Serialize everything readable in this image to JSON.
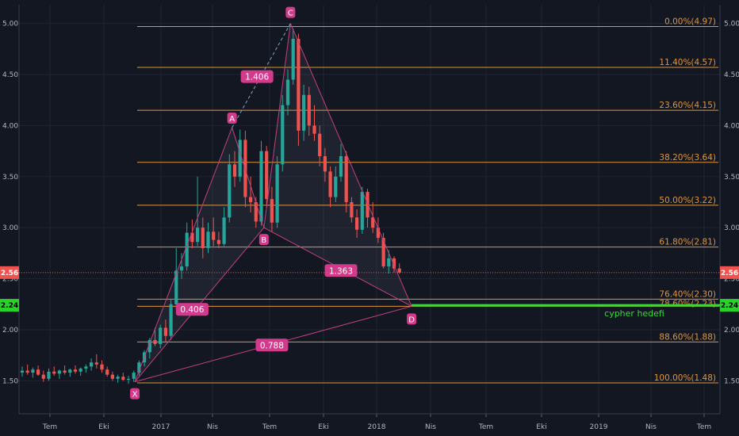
{
  "chart_data": {
    "type": "candlestick",
    "x_ticks": [
      "Tem",
      "Eki",
      "2017",
      "Nis",
      "Tem",
      "Eki",
      "2018",
      "Nis",
      "Tem",
      "Eki",
      "2019",
      "Nis",
      "Tem"
    ],
    "y_ticks": [
      "1.50",
      "2.00",
      "2.50",
      "3.00",
      "3.50",
      "4.00",
      "4.50",
      "5.00"
    ],
    "ylim": [
      1.27,
      5.09
    ],
    "grid": true,
    "current_price": {
      "value": 2.56,
      "label": "2.56",
      "color": "#ef5350"
    },
    "target_price": {
      "value": 2.24,
      "label": "2.24",
      "color": "#36d936",
      "text": "cypher hedefi"
    },
    "fib_levels": [
      {
        "value": 4.97,
        "label": "0.00%(4.97)"
      },
      {
        "value": 4.57,
        "label": "11.40%(4.57)"
      },
      {
        "value": 4.15,
        "label": "23.60%(4.15)"
      },
      {
        "value": 3.64,
        "label": "38.20%(3.64)"
      },
      {
        "value": 3.22,
        "label": "50.00%(3.22)"
      },
      {
        "value": 2.81,
        "label": "61.80%(2.81)"
      },
      {
        "value": 2.3,
        "label": "76.40%(2.30)"
      },
      {
        "value": 2.23,
        "label": "78.60%(2.23)"
      },
      {
        "value": 1.88,
        "label": "88.60%(1.88)"
      },
      {
        "value": 1.48,
        "label": "100.00%(1.48)"
      }
    ],
    "pattern_points": [
      {
        "name": "X",
        "t": 21.2,
        "value": 1.49
      },
      {
        "name": "A",
        "t": 39.5,
        "value": 3.98
      },
      {
        "name": "B",
        "t": 45.5,
        "value": 3.0
      },
      {
        "name": "C",
        "t": 50.5,
        "value": 5.0
      },
      {
        "name": "D",
        "t": 73.3,
        "value": 2.23
      }
    ],
    "ratios": [
      {
        "label": "1.406",
        "t": 44.2,
        "value": 4.48
      },
      {
        "label": "0.406",
        "t": 32.0,
        "value": 2.2
      },
      {
        "label": "1.363",
        "t": 60.0,
        "value": 2.58
      },
      {
        "label": "0.788",
        "t": 47.0,
        "value": 1.85
      }
    ],
    "candles": [
      [
        1.58,
        1.64,
        1.54,
        1.6
      ],
      [
        1.6,
        1.66,
        1.56,
        1.58
      ],
      [
        1.58,
        1.63,
        1.53,
        1.61
      ],
      [
        1.61,
        1.65,
        1.55,
        1.56
      ],
      [
        1.56,
        1.6,
        1.49,
        1.52
      ],
      [
        1.52,
        1.62,
        1.5,
        1.59
      ],
      [
        1.59,
        1.64,
        1.55,
        1.57
      ],
      [
        1.57,
        1.61,
        1.52,
        1.6
      ],
      [
        1.6,
        1.65,
        1.56,
        1.58
      ],
      [
        1.58,
        1.62,
        1.54,
        1.61
      ],
      [
        1.61,
        1.65,
        1.57,
        1.59
      ],
      [
        1.59,
        1.63,
        1.55,
        1.62
      ],
      [
        1.62,
        1.66,
        1.58,
        1.64
      ],
      [
        1.64,
        1.72,
        1.6,
        1.68
      ],
      [
        1.68,
        1.76,
        1.62,
        1.66
      ],
      [
        1.66,
        1.7,
        1.58,
        1.61
      ],
      [
        1.61,
        1.64,
        1.54,
        1.56
      ],
      [
        1.56,
        1.59,
        1.5,
        1.52
      ],
      [
        1.52,
        1.56,
        1.48,
        1.54
      ],
      [
        1.54,
        1.58,
        1.5,
        1.51
      ],
      [
        1.51,
        1.55,
        1.47,
        1.52
      ],
      [
        1.52,
        1.6,
        1.49,
        1.58
      ],
      [
        1.58,
        1.7,
        1.55,
        1.68
      ],
      [
        1.68,
        1.8,
        1.64,
        1.78
      ],
      [
        1.78,
        1.92,
        1.72,
        1.9
      ],
      [
        1.9,
        2.02,
        1.84,
        1.86
      ],
      [
        1.86,
        2.05,
        1.82,
        2.02
      ],
      [
        2.02,
        2.1,
        1.88,
        1.94
      ],
      [
        1.94,
        2.3,
        1.9,
        2.25
      ],
      [
        2.25,
        2.8,
        2.2,
        2.58
      ],
      [
        2.58,
        2.75,
        2.5,
        2.62
      ],
      [
        2.62,
        3.05,
        2.58,
        2.95
      ],
      [
        2.95,
        3.08,
        2.8,
        2.86
      ],
      [
        2.86,
        3.5,
        2.82,
        3.0
      ],
      [
        3.0,
        3.1,
        2.7,
        2.8
      ],
      [
        2.8,
        3.05,
        2.75,
        2.96
      ],
      [
        2.96,
        3.1,
        2.82,
        2.88
      ],
      [
        2.88,
        2.96,
        2.8,
        2.84
      ],
      [
        2.84,
        3.2,
        2.82,
        3.1
      ],
      [
        3.1,
        3.72,
        3.05,
        3.62
      ],
      [
        3.62,
        3.75,
        3.4,
        3.5
      ],
      [
        3.5,
        3.96,
        3.45,
        3.86
      ],
      [
        3.86,
        3.95,
        3.2,
        3.3
      ],
      [
        3.3,
        3.5,
        3.15,
        3.25
      ],
      [
        3.25,
        3.3,
        3.0,
        3.06
      ],
      [
        3.06,
        3.85,
        3.02,
        3.75
      ],
      [
        3.75,
        3.8,
        3.2,
        3.28
      ],
      [
        3.28,
        3.4,
        2.96,
        3.05
      ],
      [
        3.05,
        3.7,
        3.0,
        3.62
      ],
      [
        3.62,
        4.3,
        3.55,
        4.2
      ],
      [
        4.2,
        4.55,
        4.1,
        4.45
      ],
      [
        4.45,
        4.95,
        4.4,
        4.85
      ],
      [
        4.85,
        4.9,
        3.8,
        3.95
      ],
      [
        3.95,
        4.4,
        3.85,
        4.3
      ],
      [
        4.3,
        4.38,
        3.9,
        4.0
      ],
      [
        4.0,
        4.2,
        3.85,
        3.92
      ],
      [
        3.92,
        4.0,
        3.6,
        3.7
      ],
      [
        3.7,
        3.78,
        3.45,
        3.55
      ],
      [
        3.55,
        3.6,
        3.2,
        3.3
      ],
      [
        3.3,
        3.6,
        3.25,
        3.5
      ],
      [
        3.5,
        3.82,
        3.45,
        3.7
      ],
      [
        3.7,
        3.75,
        3.15,
        3.25
      ],
      [
        3.25,
        3.3,
        3.05,
        3.1
      ],
      [
        3.1,
        3.18,
        2.9,
        2.98
      ],
      [
        2.98,
        3.4,
        2.94,
        3.35
      ],
      [
        3.35,
        3.38,
        3.0,
        3.1
      ],
      [
        3.1,
        3.25,
        2.95,
        3.0
      ],
      [
        3.0,
        3.1,
        2.85,
        2.9
      ],
      [
        2.9,
        2.95,
        2.6,
        2.62
      ],
      [
        2.62,
        2.78,
        2.55,
        2.7
      ],
      [
        2.7,
        2.72,
        2.56,
        2.6
      ],
      [
        2.6,
        2.65,
        2.55,
        2.56
      ]
    ]
  }
}
